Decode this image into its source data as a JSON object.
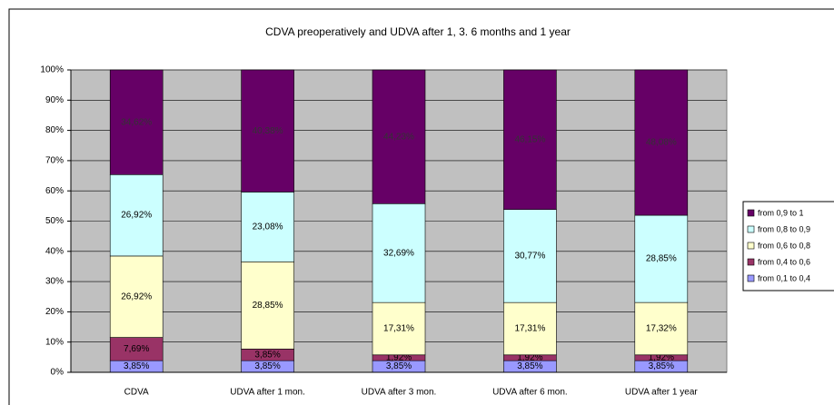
{
  "chart_data": {
    "type": "stacked_bar_100",
    "title": "CDVA preoperatively and UDVA after 1, 3. 6 months and 1 year",
    "categories": [
      "CDVA",
      "UDVA after 1 mon.",
      "UDVA after 3 mon.",
      "UDVA after 6 mon.",
      "UDVA after 1 year"
    ],
    "series": [
      {
        "name": "from 0,1 to 0,4",
        "color": "#9999ff",
        "values": [
          3.85,
          3.85,
          3.85,
          3.85,
          3.85
        ],
        "value_labels": [
          "3,85%",
          "3,85%",
          "3,85%",
          "3,85%",
          "3,85%"
        ]
      },
      {
        "name": "from 0,4 to 0,6",
        "color": "#993366",
        "values": [
          7.69,
          3.85,
          1.92,
          1.92,
          1.92
        ],
        "value_labels": [
          "7,69%",
          "3,85%",
          "1,92%",
          "1,92%",
          "1,92%"
        ]
      },
      {
        "name": "from 0,6 to 0,8",
        "color": "#ffffcc",
        "values": [
          26.92,
          28.85,
          17.31,
          17.31,
          17.32
        ],
        "value_labels": [
          "26,92%",
          "28,85%",
          "17,31%",
          "17,31%",
          "17,32%"
        ]
      },
      {
        "name": "from 0,8 to 0,9",
        "color": "#ccffff",
        "values": [
          26.92,
          23.08,
          32.69,
          30.77,
          28.85
        ],
        "value_labels": [
          "26,92%",
          "23,08%",
          "32,69%",
          "30,77%",
          "28,85%"
        ]
      },
      {
        "name": "from 0,9 to 1",
        "color": "#660066",
        "values": [
          34.62,
          40.38,
          44.23,
          46.15,
          48.08
        ],
        "value_labels": [
          "34,62%",
          "40,38%",
          "44,23%",
          "46,15%",
          "48,08%"
        ]
      }
    ],
    "ylim": [
      0,
      100
    ],
    "yticks": [
      {
        "value": 0,
        "label": "0%"
      },
      {
        "value": 10,
        "label": "10%"
      },
      {
        "value": 20,
        "label": "20%"
      },
      {
        "value": 30,
        "label": "30%"
      },
      {
        "value": 40,
        "label": "40%"
      },
      {
        "value": 50,
        "label": "50%"
      },
      {
        "value": 60,
        "label": "60%"
      },
      {
        "value": 70,
        "label": "70%"
      },
      {
        "value": 80,
        "label": "80%"
      },
      {
        "value": 90,
        "label": "90%"
      },
      {
        "value": 100,
        "label": "100%"
      }
    ],
    "grid": true,
    "legend": "right"
  }
}
